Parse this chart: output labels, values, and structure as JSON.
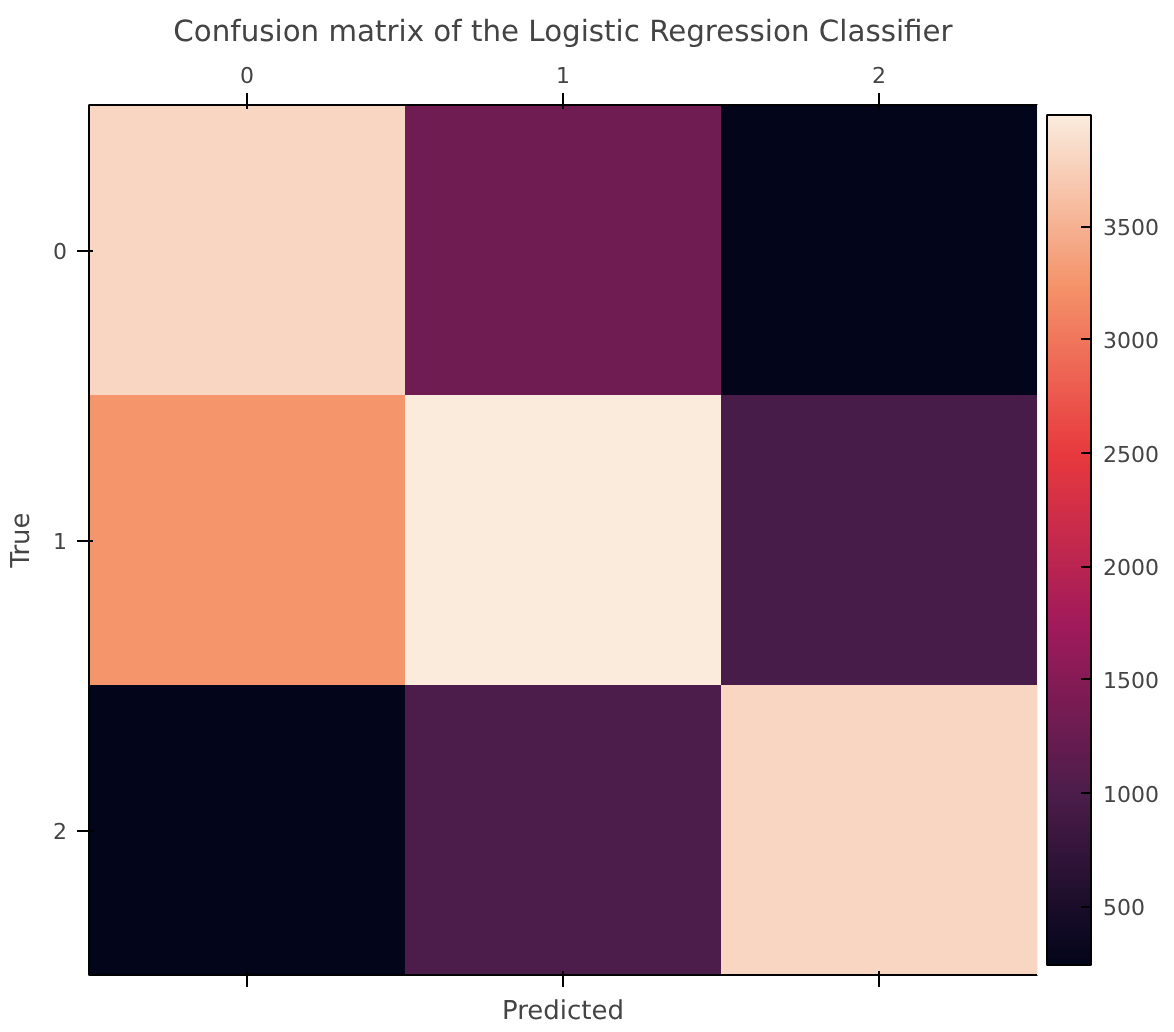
{
  "chart_data": {
    "type": "heatmap",
    "title": "Confusion matrix of the Logistic Regression Classifier",
    "xlabel": "Predicted",
    "ylabel": "True",
    "categories": [
      "0",
      "1",
      "2"
    ],
    "y_categories": [
      "0",
      "1",
      "2"
    ],
    "cells": [
      [
        3800,
        1300,
        240
      ],
      [
        3250,
        3990,
        950
      ],
      [
        240,
        1000,
        3800
      ]
    ],
    "clim": [
      240,
      3990
    ],
    "cticks": [
      500,
      1000,
      1500,
      2000,
      2500,
      3000,
      3500
    ]
  }
}
